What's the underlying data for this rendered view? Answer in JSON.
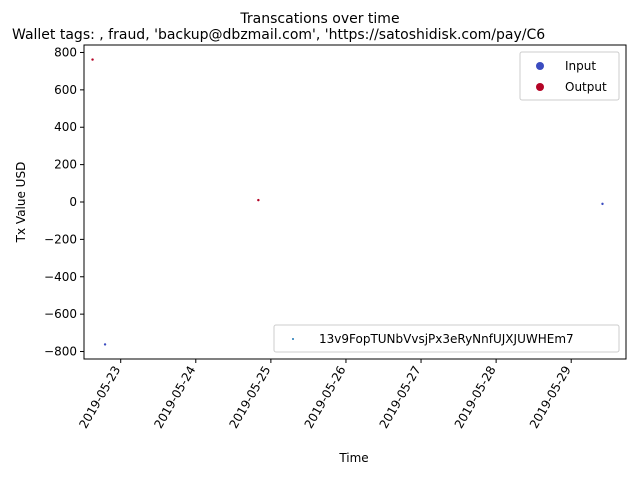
{
  "chart_data": {
    "type": "scatter",
    "title": "Transcations over time",
    "subtitle": "Wallet tags: , fraud, 'backup@dbzmail.com', 'https://satoshidisk.com/pay/C6",
    "xlabel": "Time",
    "ylabel": "Tx Value USD",
    "xlim": [
      "2019-05-22T12:16",
      "2019-05-29T17:31"
    ],
    "ylim": [
      -840,
      840
    ],
    "x_ticks": [
      "2019-05-23",
      "2019-05-24",
      "2019-05-25",
      "2019-05-26",
      "2019-05-27",
      "2019-05-28",
      "2019-05-29"
    ],
    "y_ticks": [
      800,
      600,
      400,
      200,
      0,
      -200,
      -400,
      -600,
      -800
    ],
    "grid": false,
    "series": [
      {
        "name": "Input",
        "color": "#3b4cc0",
        "points": [
          {
            "x": "2019-05-22T19:00",
            "y": -762
          },
          {
            "x": "2019-05-29T10:00",
            "y": -10
          }
        ]
      },
      {
        "name": "Output",
        "color": "#b40426",
        "points": [
          {
            "x": "2019-05-22T15:00",
            "y": 762
          },
          {
            "x": "2019-05-24T20:00",
            "y": 10
          }
        ]
      }
    ],
    "legend": {
      "position": "top-right",
      "entries": [
        {
          "label": "Input",
          "color": "#3b4cc0"
        },
        {
          "label": "Output",
          "color": "#b40426"
        }
      ]
    },
    "legend2": {
      "position": "bottom-right",
      "label": "13v9FopTUNbVvsjPx3eRyNnfUJXJUWHEm7",
      "color": "#1f77b4"
    }
  }
}
